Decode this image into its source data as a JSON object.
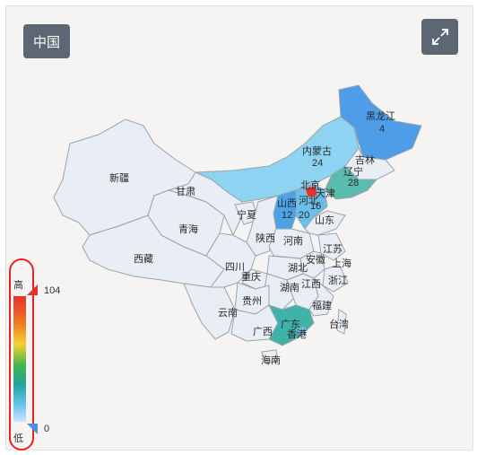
{
  "toolbar": {
    "region_label": "中国",
    "expand_icon": "expand-icon"
  },
  "legend": {
    "high_label": "高",
    "low_label": "低",
    "max_value": "104",
    "min_value": "0",
    "colors": [
      "#e8302c",
      "#f07b22",
      "#f5d130",
      "#42b64a",
      "#1fa59a",
      "#5cc2ea",
      "#c9e6fb"
    ]
  },
  "map": {
    "provinces": [
      {
        "name": "黑龙江",
        "value": "4"
      },
      {
        "name": "内蒙古",
        "value": "24"
      },
      {
        "name": "吉林",
        "value": ""
      },
      {
        "name": "辽宁",
        "value": "28"
      },
      {
        "name": "北京",
        "value": ""
      },
      {
        "name": "天津",
        "value": ""
      },
      {
        "name": "河北",
        "value": "16"
      },
      {
        "name": "山西",
        "value": "12"
      },
      {
        "name": "20",
        "value": ""
      },
      {
        "name": "新疆",
        "value": ""
      },
      {
        "name": "甘肃",
        "value": ""
      },
      {
        "name": "青海",
        "value": ""
      },
      {
        "name": "西藏",
        "value": ""
      },
      {
        "name": "宁夏",
        "value": ""
      },
      {
        "name": "陕西",
        "value": ""
      },
      {
        "name": "河南",
        "value": ""
      },
      {
        "name": "山东",
        "value": ""
      },
      {
        "name": "江苏",
        "value": ""
      },
      {
        "name": "安徽",
        "value": ""
      },
      {
        "name": "上海",
        "value": ""
      },
      {
        "name": "湖北",
        "value": ""
      },
      {
        "name": "四川",
        "value": ""
      },
      {
        "name": "重庆",
        "value": ""
      },
      {
        "name": "浙江",
        "value": ""
      },
      {
        "name": "江西",
        "value": ""
      },
      {
        "name": "湖南",
        "value": ""
      },
      {
        "name": "贵州",
        "value": ""
      },
      {
        "name": "福建",
        "value": ""
      },
      {
        "name": "云南",
        "value": ""
      },
      {
        "name": "广西",
        "value": ""
      },
      {
        "name": "广东",
        "value": ""
      },
      {
        "name": "香港",
        "value": ""
      },
      {
        "name": "台湾",
        "value": ""
      },
      {
        "name": "海南",
        "value": ""
      }
    ]
  }
}
